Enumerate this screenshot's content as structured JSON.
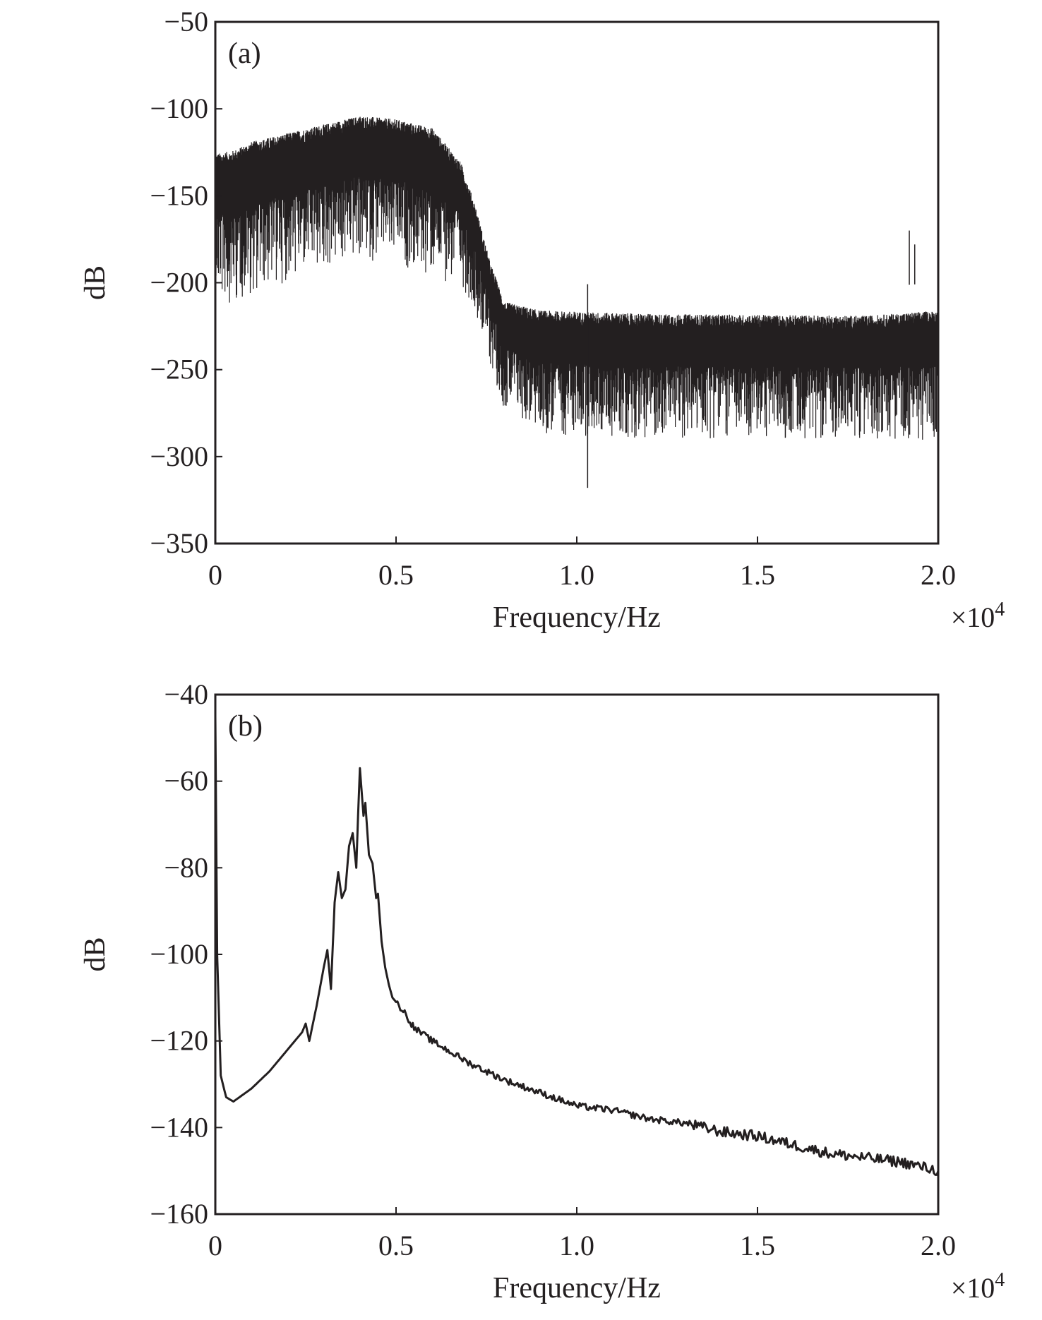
{
  "chart_data": [
    {
      "type": "line",
      "panel_label": "(a)",
      "xlabel": "Frequency/Hz",
      "ylabel": "dB",
      "x_multiplier": "×10",
      "x_multiplier_exp": "4",
      "xlim": [
        0,
        20000
      ],
      "ylim": [
        -350,
        -50
      ],
      "xticks": [
        0,
        5000,
        10000,
        15000,
        20000
      ],
      "xtick_labels": [
        "0",
        "0.5",
        "1.0",
        "1.5",
        "2.0"
      ],
      "yticks": [
        -50,
        -100,
        -150,
        -200,
        -250,
        -300,
        -350
      ],
      "ytick_labels": [
        "−50",
        "−100",
        "−150",
        "−200",
        "−250",
        "−300",
        "−350"
      ],
      "grid": false,
      "color": "#231f20",
      "description_series": "dense noisy spectrum; band envelope (upper, lower) in dB",
      "envelope": [
        [
          0,
          -130,
          -200
        ],
        [
          500,
          -128,
          -200
        ],
        [
          1000,
          -123,
          -195
        ],
        [
          2000,
          -118,
          -188
        ],
        [
          3000,
          -113,
          -182
        ],
        [
          4000,
          -108,
          -176
        ],
        [
          5000,
          -110,
          -178
        ],
        [
          6000,
          -115,
          -186
        ],
        [
          6800,
          -135,
          -192
        ],
        [
          7200,
          -160,
          -208
        ],
        [
          7600,
          -192,
          -240
        ],
        [
          8000,
          -215,
          -265
        ],
        [
          9000,
          -220,
          -278
        ],
        [
          12000,
          -222,
          -280
        ],
        [
          18000,
          -223,
          -280
        ],
        [
          20000,
          -220,
          -282
        ]
      ],
      "spikes": [
        [
          0,
          -105
        ],
        [
          19200,
          -170
        ],
        [
          19350,
          -178
        ],
        [
          10300,
          -318
        ],
        [
          20000,
          -316
        ]
      ]
    },
    {
      "type": "line",
      "panel_label": "(b)",
      "xlabel": "Frequency/Hz",
      "ylabel": "dB",
      "x_multiplier": "×10",
      "x_multiplier_exp": "4",
      "xlim": [
        0,
        20000
      ],
      "ylim": [
        -160,
        -40
      ],
      "xticks": [
        0,
        5000,
        10000,
        15000,
        20000
      ],
      "xtick_labels": [
        "0",
        "0.5",
        "1.0",
        "1.5",
        "2.0"
      ],
      "yticks": [
        -40,
        -60,
        -80,
        -100,
        -120,
        -140,
        -160
      ],
      "ytick_labels": [
        "−40",
        "−60",
        "−80",
        "−100",
        "−120",
        "−140",
        "−160"
      ],
      "grid": false,
      "color": "#231f20",
      "points": [
        [
          0,
          -45
        ],
        [
          50,
          -100
        ],
        [
          150,
          -128
        ],
        [
          300,
          -133
        ],
        [
          500,
          -134
        ],
        [
          1000,
          -131
        ],
        [
          1500,
          -127
        ],
        [
          2000,
          -122
        ],
        [
          2400,
          -118
        ],
        [
          2500,
          -116
        ],
        [
          2600,
          -120
        ],
        [
          2800,
          -112
        ],
        [
          3000,
          -103
        ],
        [
          3100,
          -99
        ],
        [
          3200,
          -108
        ],
        [
          3300,
          -88
        ],
        [
          3400,
          -81
        ],
        [
          3500,
          -87
        ],
        [
          3600,
          -85
        ],
        [
          3700,
          -75
        ],
        [
          3800,
          -72
        ],
        [
          3900,
          -80
        ],
        [
          3950,
          -68
        ],
        [
          4000,
          -57
        ],
        [
          4100,
          -68
        ],
        [
          4150,
          -65
        ],
        [
          4250,
          -77
        ],
        [
          4350,
          -79
        ],
        [
          4450,
          -87
        ],
        [
          4500,
          -86
        ],
        [
          4600,
          -97
        ],
        [
          4700,
          -103
        ],
        [
          4800,
          -107
        ],
        [
          4900,
          -110
        ],
        [
          5000,
          -111
        ],
        [
          5200,
          -113
        ],
        [
          5500,
          -117
        ],
        [
          6000,
          -120
        ],
        [
          7000,
          -125
        ],
        [
          8000,
          -129
        ],
        [
          9000,
          -132
        ],
        [
          10000,
          -135
        ],
        [
          11000,
          -136
        ],
        [
          12000,
          -138
        ],
        [
          13000,
          -139
        ],
        [
          14000,
          -141
        ],
        [
          15000,
          -142
        ],
        [
          16000,
          -144
        ],
        [
          17000,
          -146
        ],
        [
          18000,
          -147
        ],
        [
          19000,
          -148
        ],
        [
          20000,
          -150
        ]
      ]
    }
  ]
}
